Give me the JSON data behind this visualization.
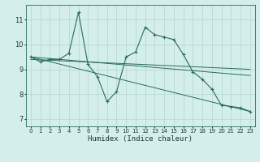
{
  "title": "",
  "xlabel": "Humidex (Indice chaleur)",
  "xlim": [
    -0.5,
    23.5
  ],
  "ylim": [
    6.7,
    11.6
  ],
  "yticks": [
    7,
    8,
    9,
    10,
    11
  ],
  "xticks": [
    0,
    1,
    2,
    3,
    4,
    5,
    6,
    7,
    8,
    9,
    10,
    11,
    12,
    13,
    14,
    15,
    16,
    17,
    18,
    19,
    20,
    21,
    22,
    23
  ],
  "bg_color": "#d4eeec",
  "grid_color": "#b8d8d6",
  "line_color": "#276b5e",
  "lines": [
    {
      "x": [
        0,
        1,
        2,
        3,
        4,
        5,
        6,
        7,
        8,
        9,
        10,
        11,
        12,
        13,
        14,
        15,
        16,
        17,
        18,
        19,
        20,
        21,
        22,
        23
      ],
      "y": [
        9.5,
        9.3,
        9.4,
        9.4,
        9.65,
        11.3,
        9.2,
        8.7,
        7.7,
        8.1,
        9.5,
        9.7,
        10.7,
        10.4,
        10.3,
        10.2,
        9.6,
        8.9,
        8.6,
        8.2,
        7.55,
        7.5,
        7.45,
        7.3
      ],
      "marker": true
    },
    {
      "x": [
        0,
        23
      ],
      "y": [
        9.5,
        8.75
      ],
      "marker": false
    },
    {
      "x": [
        0,
        23
      ],
      "y": [
        9.5,
        7.3
      ],
      "marker": false
    },
    {
      "x": [
        0,
        23
      ],
      "y": [
        9.4,
        9.0
      ],
      "marker": false
    }
  ],
  "font_size_xlabel": 6.5,
  "font_size_ticks_x": 5,
  "font_size_ticks_y": 6,
  "tick_color": "#1a3a3a",
  "spine_color": "#276b5e"
}
